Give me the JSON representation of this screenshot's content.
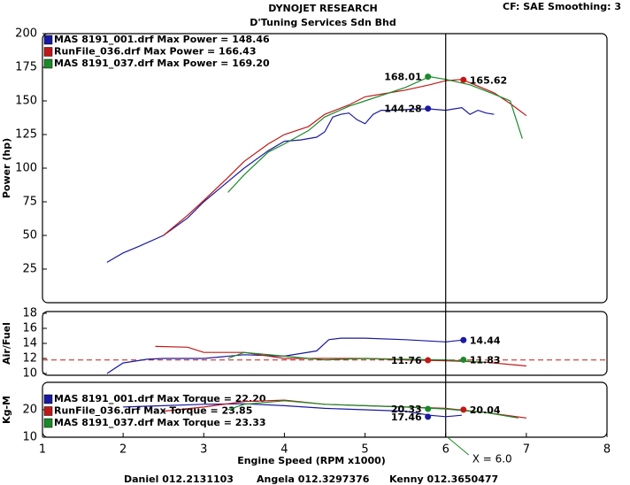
{
  "header": {
    "title": "DYNOJET RESEARCH",
    "subtitle": "D'Tuning Services Sdn Bhd",
    "settings": "CF: SAE  Smoothing: 3"
  },
  "footer": [
    "Daniel 012.2131103",
    "Angela 012.3297376",
    "Kenny 012.3650477"
  ],
  "chart_data": [
    {
      "type": "line",
      "ylabel": "Power (hp)",
      "xlim": [
        1,
        8
      ],
      "ylim": [
        0,
        200
      ],
      "yticks": [
        25,
        50,
        75,
        100,
        125,
        150,
        175,
        200
      ],
      "series": [
        {
          "name": "MAS 8191_001.drf Max Power = 148.46",
          "color": "#1a1aa0",
          "x": [
            1.8,
            2.0,
            2.2,
            2.5,
            2.8,
            3.0,
            3.3,
            3.5,
            3.8,
            4.0,
            4.2,
            4.4,
            4.5,
            4.6,
            4.7,
            4.8,
            4.9,
            5.0,
            5.1,
            5.2,
            5.4,
            5.6,
            5.8,
            6.0,
            6.2,
            6.3,
            6.4,
            6.5,
            6.6
          ],
          "values": [
            30,
            37,
            42,
            50,
            63,
            75,
            90,
            100,
            113,
            120,
            121,
            123,
            127,
            138,
            140,
            141,
            136,
            133,
            140,
            143,
            143,
            144,
            144,
            143,
            145,
            140,
            143,
            141,
            140
          ]
        },
        {
          "name": "RunFile_036.drf Max Power = 166.43",
          "color": "#c01818",
          "x": [
            2.5,
            2.8,
            3.0,
            3.3,
            3.5,
            3.8,
            4.0,
            4.3,
            4.5,
            4.8,
            5.0,
            5.3,
            5.5,
            5.8,
            6.0,
            6.2,
            6.4,
            6.6,
            6.8,
            7.0
          ],
          "values": [
            50,
            65,
            76,
            93,
            105,
            118,
            125,
            131,
            140,
            147,
            153,
            156,
            158,
            162,
            165,
            166,
            161,
            156,
            148,
            139
          ]
        },
        {
          "name": "MAS 8191_037.drf Max Power = 169.20",
          "color": "#1a8a2a",
          "x": [
            3.3,
            3.5,
            3.8,
            4.0,
            4.3,
            4.5,
            4.8,
            5.0,
            5.3,
            5.5,
            5.8,
            6.0,
            6.3,
            6.6,
            6.8,
            6.95
          ],
          "values": [
            82,
            95,
            112,
            118,
            128,
            138,
            146,
            150,
            156,
            160,
            168,
            166,
            162,
            155,
            150,
            122
          ]
        }
      ],
      "points": [
        {
          "x": 5.78,
          "y": 168.01,
          "color": "#1a8a2a"
        },
        {
          "x": 6.22,
          "y": 165.62,
          "color": "#c01818"
        },
        {
          "x": 5.78,
          "y": 144.28,
          "color": "#1a1aa0"
        }
      ]
    },
    {
      "type": "line",
      "ylabel": "Air/Fuel",
      "xlim": [
        1,
        8
      ],
      "ylim": [
        10,
        18
      ],
      "yticks": [
        10,
        12,
        14,
        16,
        18
      ],
      "reference_line": 11.8,
      "reference_color": "#c01818",
      "series": [
        {
          "color": "#1a1aa0",
          "x": [
            1.8,
            2.0,
            2.3,
            2.5,
            3.0,
            3.5,
            4.0,
            4.4,
            4.55,
            4.7,
            5.0,
            5.5,
            6.0,
            6.2
          ],
          "values": [
            10,
            11.4,
            11.9,
            12,
            12,
            12.5,
            12.3,
            13,
            14.5,
            14.7,
            14.7,
            14.5,
            14.2,
            14.44
          ]
        },
        {
          "color": "#c01818",
          "x": [
            2.4,
            2.8,
            3.0,
            3.5,
            4.0,
            4.5,
            5.0,
            5.5,
            6.0,
            6.5,
            7.0
          ],
          "values": [
            13.6,
            13.5,
            12.8,
            12.8,
            12.0,
            12.0,
            12.0,
            11.8,
            11.7,
            11.5,
            11.0
          ]
        },
        {
          "color": "#1a8a2a",
          "x": [
            3.3,
            3.5,
            4.0,
            4.5,
            5.0,
            5.5,
            6.0,
            6.5
          ],
          "values": [
            12.0,
            12.8,
            12.3,
            11.8,
            12.0,
            11.9,
            11.8,
            11.5
          ]
        }
      ],
      "points": [
        {
          "x": 6.22,
          "y": 14.44,
          "color": "#1a1aa0"
        },
        {
          "x": 5.78,
          "y": 11.76,
          "color": "#c01818"
        },
        {
          "x": 6.22,
          "y": 11.83,
          "color": "#1a8a2a"
        }
      ]
    },
    {
      "type": "line",
      "ylabel": "Kg-M",
      "xlabel": "Engine Speed (RPM x1000)",
      "xlim": [
        1,
        8
      ],
      "ylim": [
        10,
        30
      ],
      "yticks": [
        10,
        20
      ],
      "xticks": [
        1,
        2,
        3,
        4,
        5,
        6,
        7,
        8
      ],
      "cursor": {
        "value": 6,
        "label": "X = 6.0"
      },
      "series": [
        {
          "name": "MAS 8191_001.drf Max Torque = 22.20",
          "color": "#1a1aa0",
          "x": [
            2.0,
            2.5,
            3.0,
            3.5,
            4.0,
            4.5,
            5.0,
            5.5,
            5.8,
            6.0,
            6.2
          ],
          "values": [
            21,
            21.5,
            22,
            22.2,
            21.5,
            20.5,
            20,
            19.5,
            18,
            17.5,
            18
          ]
        },
        {
          "name": "RunFile_036.drf Max Torque = 23.85",
          "color": "#c01818",
          "x": [
            2.5,
            3.0,
            3.5,
            4.0,
            4.5,
            5.0,
            5.5,
            6.0,
            6.5,
            7.0
          ],
          "values": [
            19.5,
            21,
            23,
            23.5,
            22,
            21.5,
            21,
            20.5,
            19,
            17
          ]
        },
        {
          "name": "MAS 8191_037.drf Max Torque = 23.33",
          "color": "#1a8a2a",
          "x": [
            3.3,
            3.5,
            4.0,
            4.5,
            5.0,
            5.5,
            6.0,
            6.5,
            6.9
          ],
          "values": [
            20,
            22,
            23.3,
            22,
            21.5,
            21,
            20.3,
            19,
            17
          ]
        }
      ],
      "points": [
        {
          "x": 5.78,
          "y": 20.33,
          "color": "#1a8a2a"
        },
        {
          "x": 6.22,
          "y": 20.04,
          "color": "#c01818"
        },
        {
          "x": 5.78,
          "y": 17.46,
          "color": "#1a1aa0"
        }
      ]
    }
  ]
}
